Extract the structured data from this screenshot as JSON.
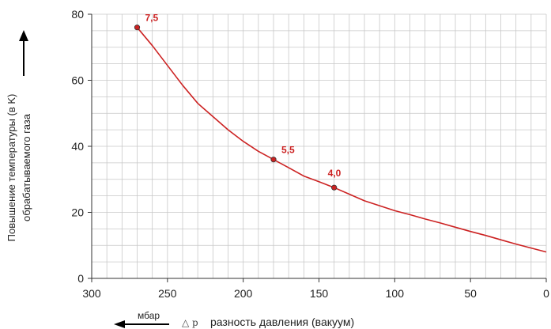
{
  "chart_data": {
    "type": "line",
    "x": [
      270,
      260,
      250,
      240,
      230,
      220,
      210,
      200,
      190,
      180,
      170,
      160,
      150,
      140,
      130,
      120,
      110,
      100,
      90,
      80,
      70,
      60,
      50,
      40,
      30,
      20,
      10,
      0
    ],
    "series": [
      {
        "values": [
          76,
          70.5,
          64.5,
          58.5,
          53,
          49,
          45,
          41.5,
          38.5,
          36,
          33.5,
          31,
          29.3,
          27.5,
          25.5,
          23.5,
          22,
          20.5,
          19.3,
          18,
          16.8,
          15.5,
          14.2,
          13,
          11.7,
          10.4,
          9.2,
          8
        ]
      }
    ],
    "markers": [
      {
        "x": 270,
        "y": 76,
        "label": "7,5"
      },
      {
        "x": 180,
        "y": 36,
        "label": "5,5"
      },
      {
        "x": 140,
        "y": 27.5,
        "label": "4,0"
      }
    ],
    "xlim": [
      300,
      0
    ],
    "ylim": [
      0,
      80
    ],
    "x_ticks": [
      "300",
      "250",
      "200",
      "150",
      "100",
      "50",
      "0"
    ],
    "y_ticks": [
      "0",
      "20",
      "40",
      "60",
      "80"
    ],
    "ylabel_line1": "Повышение температуры (в K)",
    "ylabel_line2": "обрабатываемого газа",
    "xlabel": "разность давления (вакуум)",
    "x_unit": "мбар",
    "x_symbol": "△ p",
    "grid": true,
    "colors": {
      "line": "#cc2222",
      "marker_fill": "#cc2222",
      "grid": "#c8c8c8",
      "axis": "#333333"
    }
  }
}
